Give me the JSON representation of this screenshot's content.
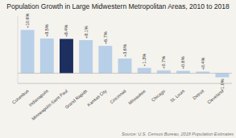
{
  "chart_data": {
    "type": "bar",
    "title": "Population Growth in Large Midwestern Metropolitan Areas, 2010 to 2018",
    "categories": [
      "Columbus",
      "Indianapolis",
      "Minneapolis-Saint Paul",
      "Grand Rapids",
      "Kansas City",
      "Cincinnati",
      "Milwaukee",
      "Chicago",
      "St. Louis",
      "Detroit",
      "Cleveland"
    ],
    "values": [
      10.6,
      8.5,
      8.4,
      8.1,
      6.7,
      3.6,
      1.3,
      0.7,
      0.6,
      0.4,
      -1.0
    ],
    "value_labels": [
      "+10.6%",
      "+8.5%",
      "+8.4%",
      "+8.1%",
      "+6.7%",
      "+3.6%",
      "+1.3%",
      "+0.7%",
      "+0.6%",
      "+0.4%",
      "-1.0%"
    ],
    "colors": [
      "#b8cfe8",
      "#b8cfe8",
      "#1c2f5e",
      "#b8cfe8",
      "#b8cfe8",
      "#b8cfe8",
      "#b8cfe8",
      "#b8cfe8",
      "#b8cfe8",
      "#b8cfe8",
      "#b8cfe8"
    ],
    "ylim": [
      -2.5,
      14.0
    ],
    "data_labels": true,
    "tick_labels": "x",
    "annotations": [
      "Source: U.S. Census Bureau, 2018 Population Estimates"
    ]
  }
}
